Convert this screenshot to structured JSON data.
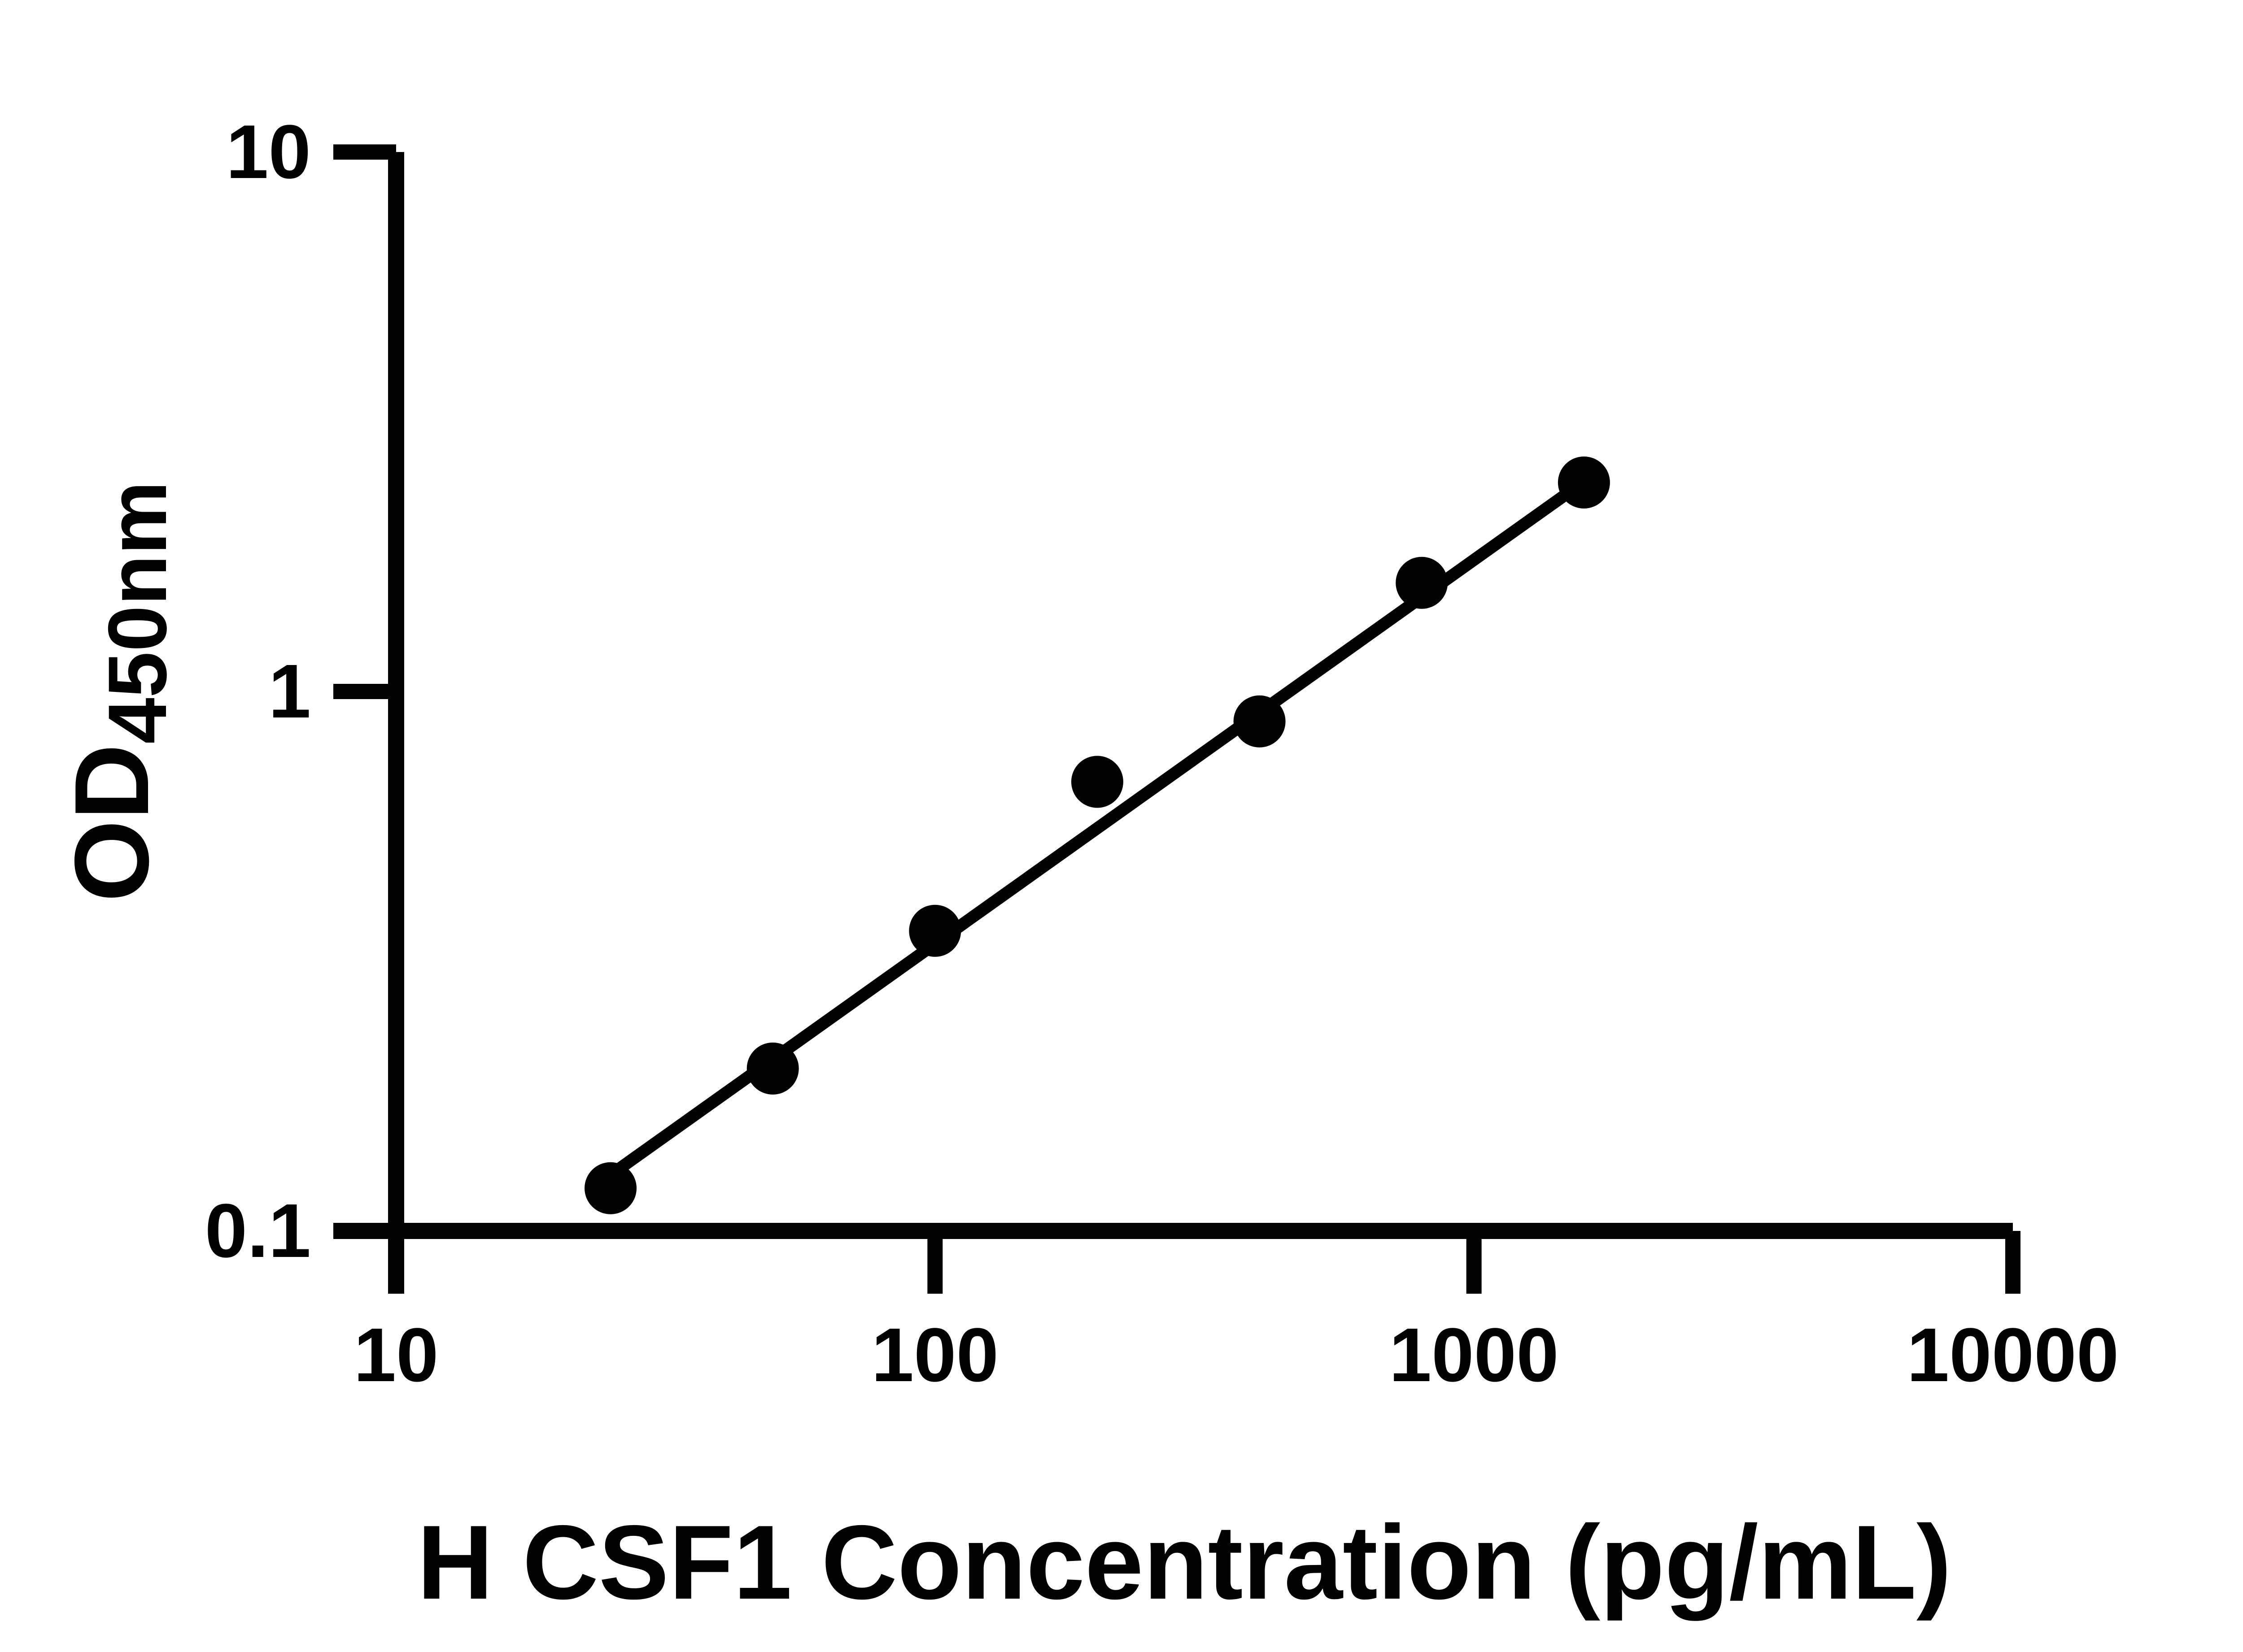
{
  "figure": {
    "background_color": "#ffffff",
    "ink_color": "#000000"
  },
  "chart_data": {
    "type": "scatter",
    "title": "",
    "xlabel": "H CSF1 Concentration (pg/mL)",
    "ylabel_main": "OD",
    "ylabel_sub": "450nm",
    "x_scale": "log10",
    "y_scale": "log10",
    "xlim": [
      10,
      10000
    ],
    "ylim": [
      0.1,
      10
    ],
    "grid": false,
    "legend": "none",
    "x_ticks": {
      "values": [
        10,
        100,
        1000,
        10000
      ],
      "labels": [
        "10",
        "100",
        "1000",
        "10000"
      ]
    },
    "y_ticks": {
      "values": [
        0.1,
        1,
        10
      ],
      "labels": [
        "0.1",
        "1",
        "10"
      ]
    },
    "series": [
      {
        "name": "standard-curve-points",
        "marker": "filled-circle",
        "color": "#000000",
        "x": [
          25,
          50,
          100,
          200,
          400,
          800,
          1600
        ],
        "y": [
          0.12,
          0.2,
          0.36,
          0.68,
          0.88,
          1.59,
          2.44
        ]
      }
    ],
    "fit_line": {
      "name": "regression-line",
      "color": "#000000",
      "x": [
        25,
        1600
      ],
      "y": [
        0.127,
        2.45
      ]
    }
  }
}
